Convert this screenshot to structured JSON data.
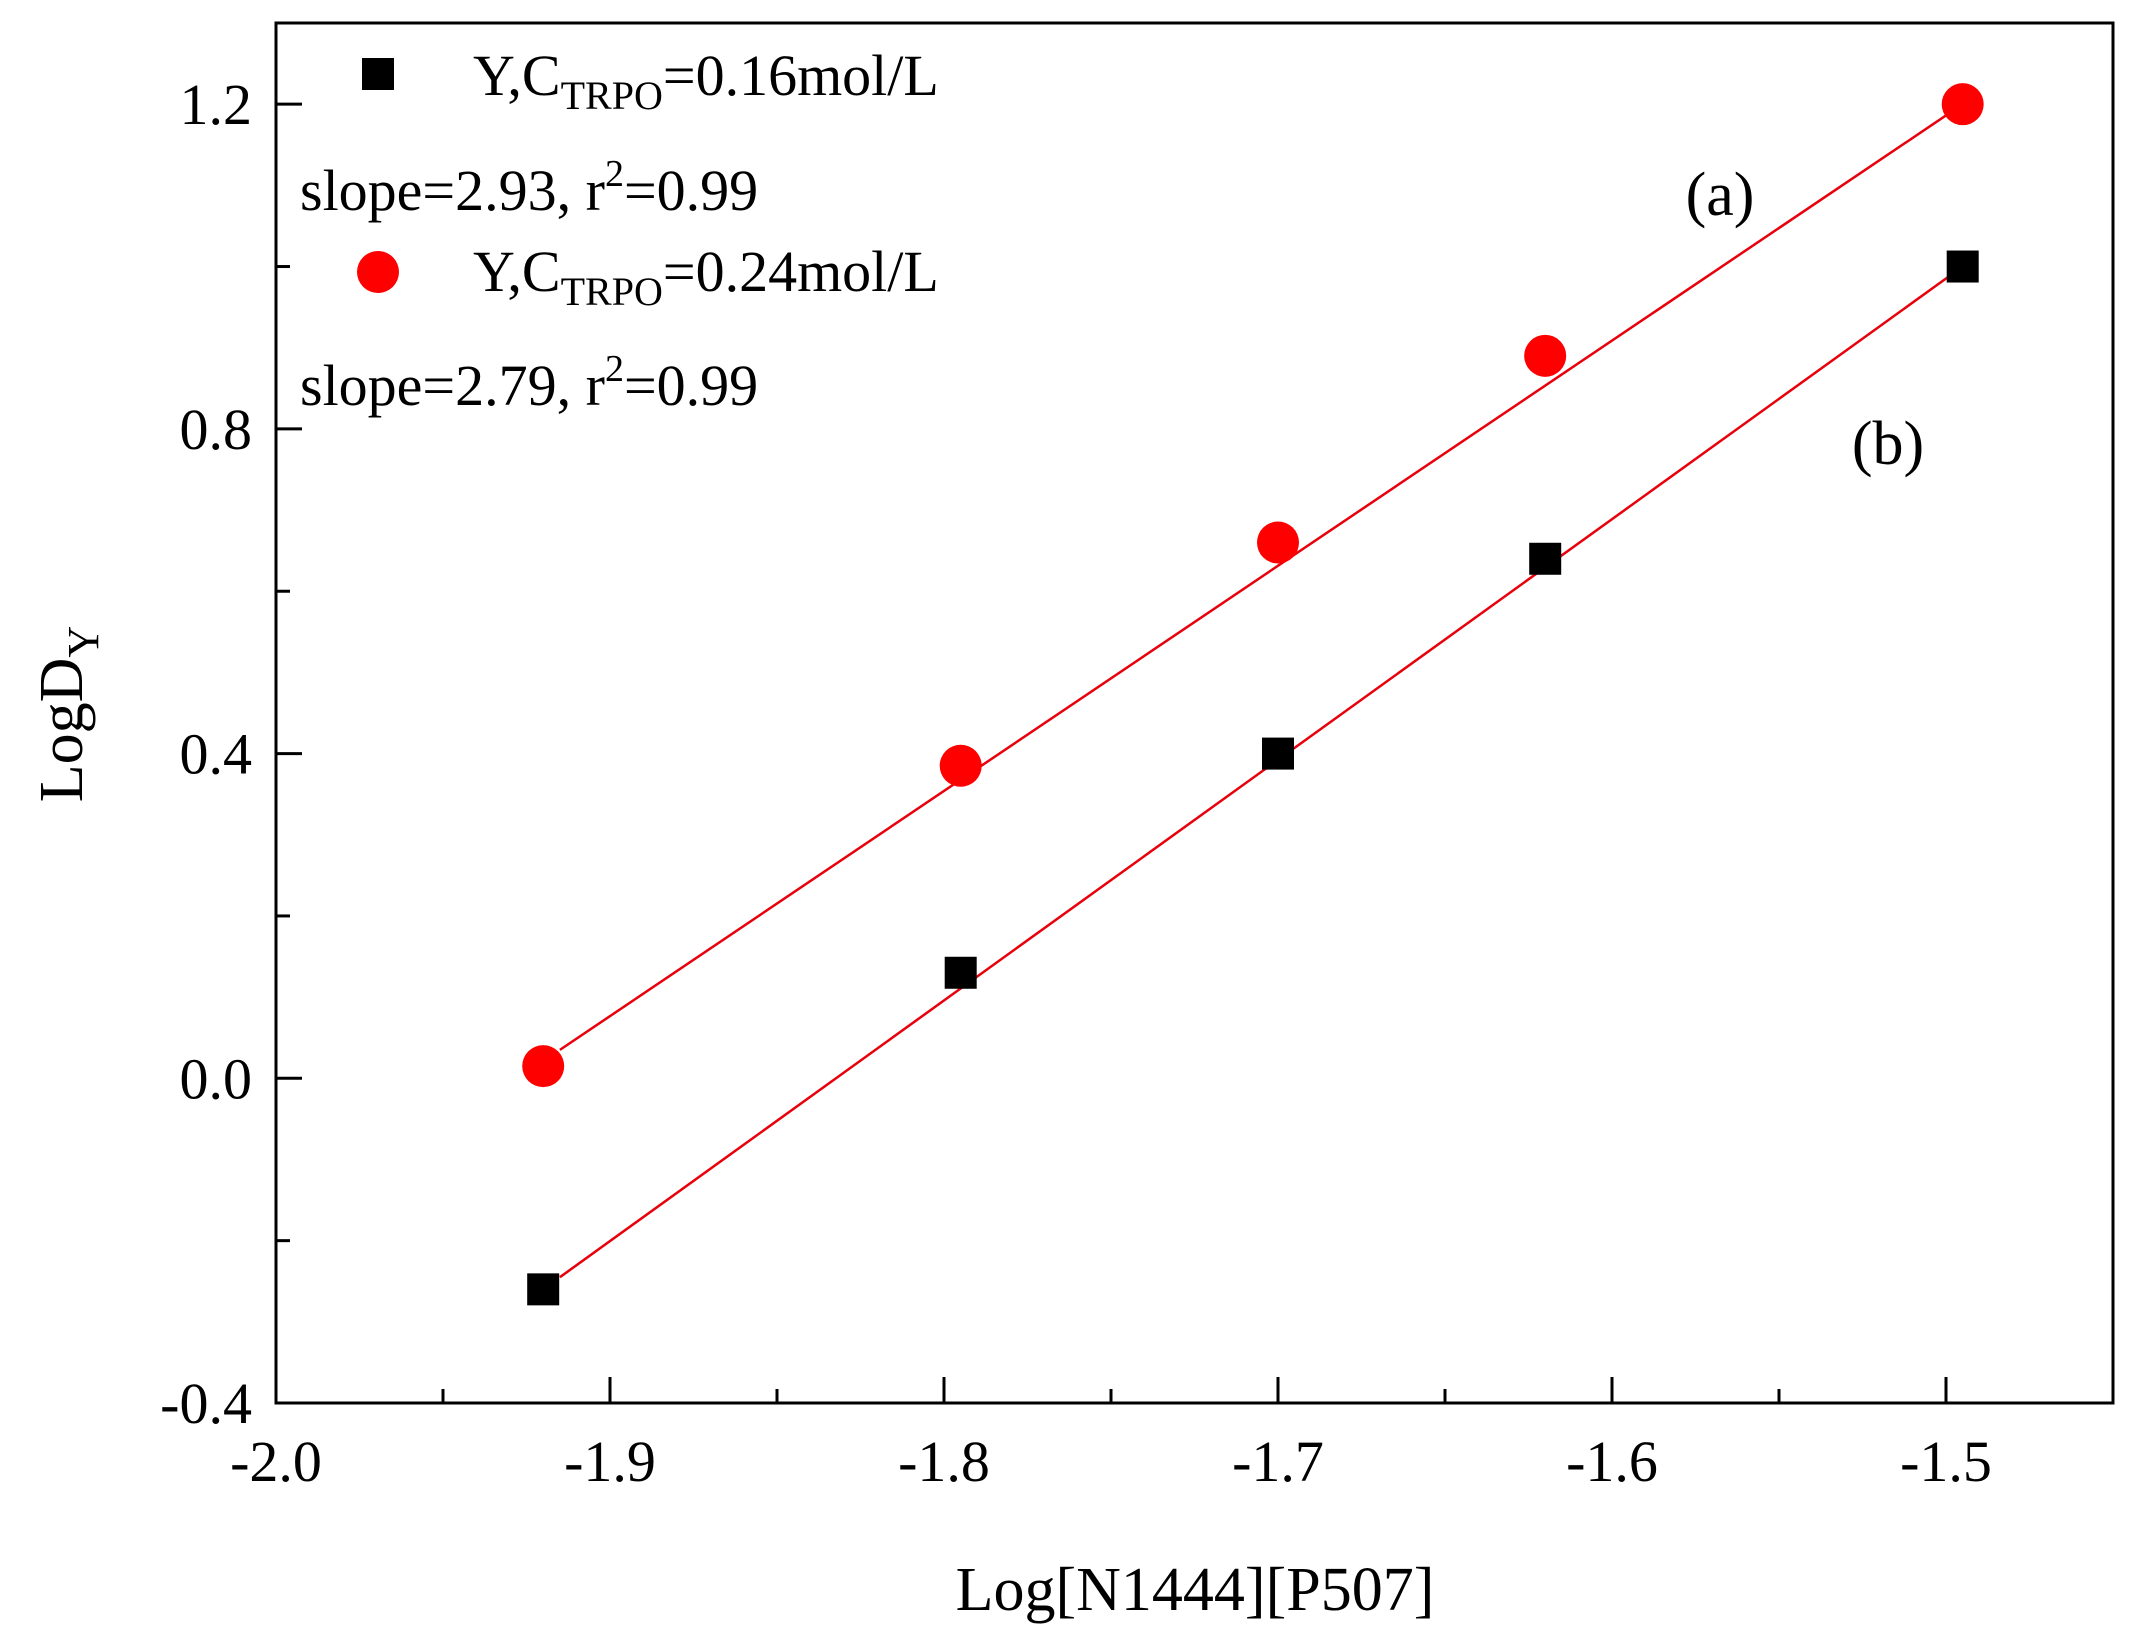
{
  "chart_data": {
    "type": "scatter",
    "title": "",
    "xlabel": "Log[N1444][P507]",
    "ylabel": {
      "main": "LogD",
      "sub": "Y"
    },
    "xlim": [
      -2.0,
      -1.45
    ],
    "ylim": [
      -0.4,
      1.3
    ],
    "xticks": [
      -2.0,
      -1.9,
      -1.8,
      -1.7,
      -1.6,
      -1.5
    ],
    "xtick_labels": [
      "-2.0",
      "-1.9",
      "-1.8",
      "-1.7",
      "-1.6",
      "-1.5"
    ],
    "yticks": [
      -0.4,
      0.0,
      0.4,
      0.8,
      1.2
    ],
    "ytick_labels": [
      "-0.4",
      "0.0",
      "0.4",
      "0.8",
      "1.2"
    ],
    "x_minor_step": 0.05,
    "y_minor_step": 0.2,
    "grid": false,
    "legend_position": "top-left",
    "series": [
      {
        "key": "b",
        "marker": "square",
        "color": "#000000",
        "fit_color": "#e8000b",
        "legend": {
          "prefix": "Y,C",
          "sub": "TRPO",
          "suffix": "=0.16mol/L"
        },
        "fit_label": {
          "prefix": "slope=2.93, r",
          "sup": "2",
          "suffix": "=0.99"
        },
        "curve_label": "(b)",
        "x": [
          -1.92,
          -1.795,
          -1.7,
          -1.62,
          -1.495
        ],
        "y": [
          -0.26,
          0.13,
          0.4,
          0.64,
          1.0
        ],
        "fit": {
          "x": [
            -1.915,
            -1.495
          ],
          "y": [
            -0.245,
            1.0
          ]
        }
      },
      {
        "key": "a",
        "marker": "circle",
        "color": "#ff0000",
        "fit_color": "#e8000b",
        "legend": {
          "prefix": "Y,C",
          "sub": "TRPO",
          "suffix": "=0.24mol/L"
        },
        "fit_label": {
          "prefix": "slope=2.79, r",
          "sup": "2",
          "suffix": "=0.99"
        },
        "curve_label": "(a)",
        "x": [
          -1.92,
          -1.795,
          -1.7,
          -1.62,
          -1.495
        ],
        "y": [
          0.015,
          0.385,
          0.66,
          0.89,
          1.2
        ],
        "fit": {
          "x": [
            -1.915,
            -1.495
          ],
          "y": [
            0.035,
            1.2
          ]
        }
      }
    ]
  }
}
